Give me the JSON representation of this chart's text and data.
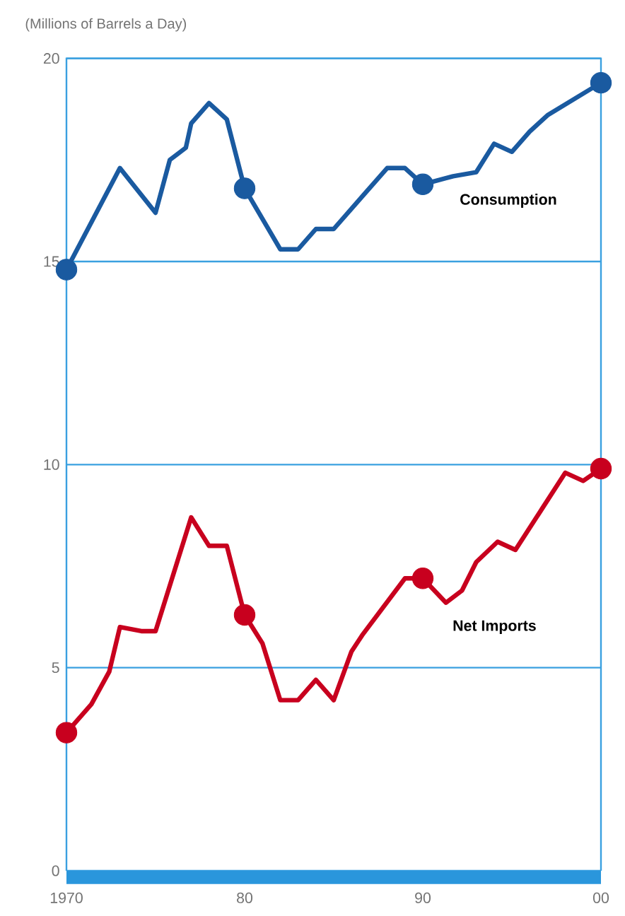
{
  "chart_data": {
    "type": "line",
    "ylabel": "(Millions of Barrels a Day)",
    "xlim": [
      1970,
      2000
    ],
    "ylim": [
      0,
      20
    ],
    "xticks": [
      {
        "value": 1970,
        "label": "1970"
      },
      {
        "value": 1980,
        "label": "80"
      },
      {
        "value": 1990,
        "label": "90"
      },
      {
        "value": 2000,
        "label": "00"
      }
    ],
    "yticks": [
      0,
      5,
      10,
      15,
      20
    ],
    "grid": "y",
    "legend": false,
    "line_style": "solid",
    "series": [
      {
        "name": "Consumption",
        "color": "#1a5aa0",
        "marker": "none",
        "x": [
          1970,
          1973,
          1975,
          1975.8,
          1976.7,
          1977,
          1978,
          1979,
          1980,
          1982,
          1983,
          1984,
          1985,
          1988,
          1989,
          1990,
          1991.7,
          1993,
          1994,
          1995,
          1996,
          1997,
          2000
        ],
        "values": [
          14.8,
          17.3,
          16.2,
          17.5,
          17.8,
          18.4,
          18.9,
          18.5,
          16.8,
          15.3,
          15.3,
          15.8,
          15.8,
          17.3,
          17.3,
          16.9,
          17.1,
          17.2,
          17.9,
          17.7,
          18.2,
          18.6,
          19.4
        ]
      },
      {
        "type": "scatter",
        "color": "#1a5aa0",
        "marker": "circle",
        "x": [
          1970,
          1980,
          1990,
          2000
        ],
        "values": [
          14.8,
          16.8,
          16.9,
          19.4
        ]
      },
      {
        "name": "Net Imports",
        "color": "#c8001e",
        "marker": "none",
        "x": [
          1970,
          1971.4,
          1972.4,
          1973,
          1974.2,
          1975,
          1977,
          1978,
          1979,
          1980,
          1981,
          1982,
          1983,
          1984,
          1985,
          1986,
          1986.6,
          1989,
          1990,
          1991.3,
          1992.2,
          1993,
          1994.2,
          1995.2,
          1998,
          1999,
          2000
        ],
        "values": [
          3.4,
          4.1,
          4.9,
          6.0,
          5.9,
          5.9,
          8.7,
          8.0,
          8.0,
          6.3,
          5.6,
          4.2,
          4.2,
          4.7,
          4.2,
          5.4,
          5.8,
          7.2,
          7.2,
          6.6,
          6.9,
          7.6,
          8.1,
          7.9,
          9.8,
          9.6,
          9.9
        ]
      },
      {
        "type": "scatter",
        "color": "#c8001e",
        "marker": "circle",
        "x": [
          1970,
          1980,
          1990,
          2000
        ],
        "values": [
          3.4,
          6.3,
          7.2,
          9.9
        ]
      }
    ]
  }
}
